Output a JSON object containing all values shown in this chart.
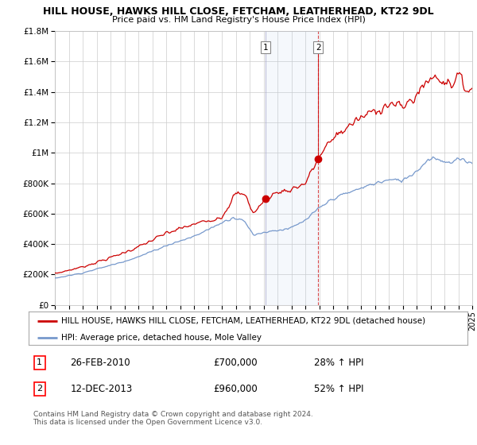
{
  "title": "HILL HOUSE, HAWKS HILL CLOSE, FETCHAM, LEATHERHEAD, KT22 9DL",
  "subtitle": "Price paid vs. HM Land Registry's House Price Index (HPI)",
  "line1_label": "HILL HOUSE, HAWKS HILL CLOSE, FETCHAM, LEATHERHEAD, KT22 9DL (detached house)",
  "line2_label": "HPI: Average price, detached house, Mole Valley",
  "line1_color": "#cc0000",
  "line2_color": "#7799cc",
  "marker1_x": 2010.15,
  "marker1_y": 700000,
  "marker1_label": "1",
  "marker1_date": "26-FEB-2010",
  "marker1_price": "£700,000",
  "marker1_hpi": "28% ↑ HPI",
  "marker2_x": 2013.93,
  "marker2_y": 960000,
  "marker2_label": "2",
  "marker2_date": "12-DEC-2013",
  "marker2_price": "£960,000",
  "marker2_hpi": "52% ↑ HPI",
  "xmin": 1995,
  "xmax": 2025,
  "ymin": 0,
  "ymax": 1800000,
  "yticks": [
    0,
    200000,
    400000,
    600000,
    800000,
    1000000,
    1200000,
    1400000,
    1600000,
    1800000
  ],
  "ytick_labels": [
    "£0",
    "£200K",
    "£400K",
    "£600K",
    "£800K",
    "£1M",
    "£1.2M",
    "£1.4M",
    "£1.6M",
    "£1.8M"
  ],
  "xticks": [
    1995,
    1996,
    1997,
    1998,
    1999,
    2000,
    2001,
    2002,
    2003,
    2004,
    2005,
    2006,
    2007,
    2008,
    2009,
    2010,
    2011,
    2012,
    2013,
    2014,
    2015,
    2016,
    2017,
    2018,
    2019,
    2020,
    2021,
    2022,
    2023,
    2024,
    2025
  ],
  "background_color": "#ffffff",
  "grid_color": "#cccccc",
  "footer": "Contains HM Land Registry data © Crown copyright and database right 2024.\nThis data is licensed under the Open Government Licence v3.0."
}
